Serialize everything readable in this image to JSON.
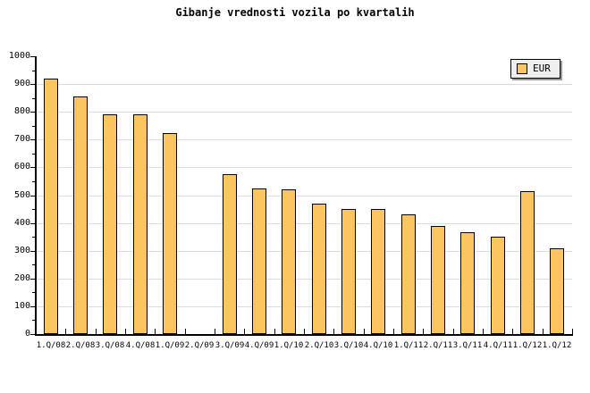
{
  "title": "Gibanje vrednosti vozila po kvartalih",
  "legend": {
    "label": "EUR"
  },
  "colors": {
    "background": "#ffffff",
    "bar_fill": "#FCC55F",
    "bar_border": "#000000",
    "grid": "#DCDCDC",
    "axis": "#000000",
    "text": "#000000",
    "legend_bg": "#EFEFEF",
    "legend_shadow": "#999999"
  },
  "chart_data": {
    "type": "bar",
    "title": "Gibanje vrednosti vozila po kvartalih",
    "categories": [
      "1.Q/08",
      "2.Q/08",
      "3.Q/08",
      "4.Q/08",
      "1.Q/09",
      "2.Q/09",
      "3.Q/09",
      "4.Q/09",
      "1.Q/10",
      "2.Q/10",
      "3.Q/10",
      "4.Q/10",
      "1.Q/11",
      "2.Q/11",
      "3.Q/11",
      "4.Q/11",
      "1.Q/12",
      "1.Q/12"
    ],
    "series": [
      {
        "name": "EUR",
        "values": [
          920,
          855,
          790,
          790,
          725,
          null,
          575,
          525,
          520,
          470,
          450,
          450,
          430,
          390,
          365,
          350,
          515,
          310
        ]
      }
    ],
    "xlabel": "",
    "ylabel": "",
    "ylim": [
      0,
      1000
    ],
    "y_major_step": 100,
    "y_minor_step": 50,
    "grid": "horizontal-major",
    "legend_position": "top-right"
  }
}
